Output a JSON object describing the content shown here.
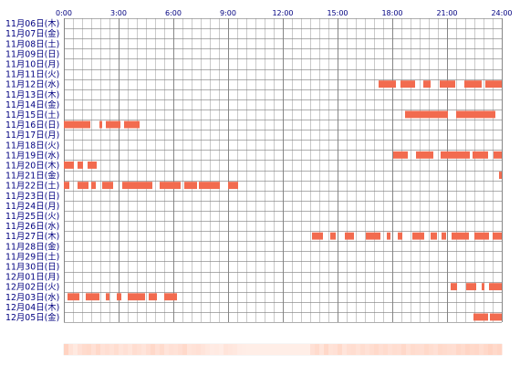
{
  "chart_data": {
    "type": "timeline",
    "time_ticks": [
      "0:00",
      "3:00",
      "6:00",
      "9:00",
      "12:00",
      "15:00",
      "18:00",
      "21:00",
      "24:00"
    ],
    "x_range_hours": [
      0,
      24
    ],
    "bar_color": "#f26b4f",
    "grid_color": "#808080",
    "text_color": "#000080",
    "heatmap": {
      "low_color": "#fff0ea",
      "high_color": "#ffc9b5",
      "levels": [
        0.75,
        0.35,
        0.18,
        0.4,
        0.55,
        0.6,
        0.4,
        0.62,
        0.38,
        0.45,
        0.35,
        0.5,
        0.3,
        0.4,
        0.28,
        0.5,
        0.42,
        0.3,
        0.45,
        0.62,
        0.4,
        0.55,
        0.3,
        0.4,
        0.35,
        0.45,
        0.6,
        0.3,
        0.35,
        0.4,
        0.3,
        0.2,
        0.12,
        0.15,
        0.1,
        0.3,
        0.25,
        0.2,
        0.1,
        0.08,
        0.05,
        0.05,
        0.05,
        0.05,
        0.05,
        0.05,
        0.05,
        0.05,
        0.05,
        0.05,
        0.05,
        0.05,
        0.05,
        0.05,
        0.4,
        0.55,
        0.3,
        0.62,
        0.35,
        0.4,
        0.6,
        0.3,
        0.45,
        0.5,
        0.35,
        0.5,
        0.38,
        0.5,
        0.6,
        0.45,
        0.55,
        0.4,
        0.5,
        0.45,
        0.62,
        0.4,
        0.55,
        0.5,
        0.45,
        0.6,
        0.5,
        0.4,
        0.6,
        0.55,
        0.5,
        0.45,
        0.65,
        0.55,
        0.7,
        0.6,
        0.65,
        0.5,
        0.62,
        0.75,
        0.6,
        0.7
      ]
    },
    "days": [
      {
        "label": "11月06日(木)",
        "segments": []
      },
      {
        "label": "11月07日(金)",
        "segments": []
      },
      {
        "label": "11月08日(土)",
        "segments": []
      },
      {
        "label": "11月09日(日)",
        "segments": []
      },
      {
        "label": "11月10日(月)",
        "segments": []
      },
      {
        "label": "11月11日(火)",
        "segments": []
      },
      {
        "label": "11月12日(水)",
        "segments": [
          [
            17.25,
            18.2
          ],
          [
            18.45,
            19.25
          ],
          [
            19.7,
            20.1
          ],
          [
            20.6,
            21.45
          ],
          [
            21.95,
            22.9
          ],
          [
            23.1,
            24.0
          ]
        ]
      },
      {
        "label": "11月13日(木)",
        "segments": []
      },
      {
        "label": "11月14日(金)",
        "segments": []
      },
      {
        "label": "11月15日(土)",
        "segments": [
          [
            18.7,
            21.05
          ],
          [
            21.5,
            23.65
          ]
        ]
      },
      {
        "label": "11月16日(日)",
        "segments": [
          [
            0.0,
            1.45
          ],
          [
            1.95,
            2.1
          ],
          [
            2.3,
            3.1
          ],
          [
            3.3,
            4.15
          ]
        ]
      },
      {
        "label": "11月17日(月)",
        "segments": []
      },
      {
        "label": "11月18日(火)",
        "segments": []
      },
      {
        "label": "11月19日(水)",
        "segments": [
          [
            18.05,
            18.85
          ],
          [
            19.3,
            20.25
          ],
          [
            20.65,
            22.25
          ],
          [
            22.4,
            23.25
          ],
          [
            23.55,
            24.0
          ]
        ]
      },
      {
        "label": "11月20日(木)",
        "segments": [
          [
            0.0,
            0.55
          ],
          [
            0.75,
            1.05
          ],
          [
            1.3,
            1.8
          ]
        ]
      },
      {
        "label": "11月21日(金)",
        "segments": [
          [
            23.85,
            24.0
          ]
        ]
      },
      {
        "label": "11月22日(土)",
        "segments": [
          [
            0.0,
            0.3
          ],
          [
            0.75,
            1.35
          ],
          [
            1.5,
            1.75
          ],
          [
            2.1,
            2.7
          ],
          [
            3.2,
            4.85
          ],
          [
            5.25,
            6.4
          ],
          [
            6.6,
            7.3
          ],
          [
            7.4,
            8.55
          ],
          [
            9.0,
            9.55
          ]
        ]
      },
      {
        "label": "11月23日(日)",
        "segments": []
      },
      {
        "label": "11月24日(月)",
        "segments": []
      },
      {
        "label": "11月25日(火)",
        "segments": []
      },
      {
        "label": "11月26日(水)",
        "segments": []
      },
      {
        "label": "11月27日(木)",
        "segments": [
          [
            13.6,
            14.2
          ],
          [
            14.6,
            14.9
          ],
          [
            15.4,
            15.9
          ],
          [
            16.55,
            17.35
          ],
          [
            17.7,
            17.9
          ],
          [
            18.3,
            18.55
          ],
          [
            19.1,
            19.75
          ],
          [
            20.1,
            20.45
          ],
          [
            20.7,
            20.95
          ],
          [
            21.25,
            22.2
          ],
          [
            22.5,
            23.3
          ],
          [
            23.5,
            24.0
          ]
        ]
      },
      {
        "label": "11月28日(金)",
        "segments": []
      },
      {
        "label": "11月29日(土)",
        "segments": []
      },
      {
        "label": "11月30日(日)",
        "segments": []
      },
      {
        "label": "12月01日(月)",
        "segments": []
      },
      {
        "label": "12月02日(火)",
        "segments": [
          [
            21.2,
            21.55
          ],
          [
            22.05,
            22.6
          ],
          [
            22.9,
            23.05
          ],
          [
            23.3,
            24.0
          ]
        ]
      },
      {
        "label": "12月03日(水)",
        "segments": [
          [
            0.2,
            0.85
          ],
          [
            1.2,
            1.95
          ],
          [
            2.3,
            2.5
          ],
          [
            2.9,
            3.15
          ],
          [
            3.5,
            4.45
          ],
          [
            4.65,
            5.1
          ],
          [
            5.5,
            6.2
          ]
        ]
      },
      {
        "label": "12月04日(木)",
        "segments": []
      },
      {
        "label": "12月05日(金)",
        "segments": [
          [
            22.45,
            23.25
          ],
          [
            23.35,
            24.0
          ]
        ]
      }
    ]
  }
}
